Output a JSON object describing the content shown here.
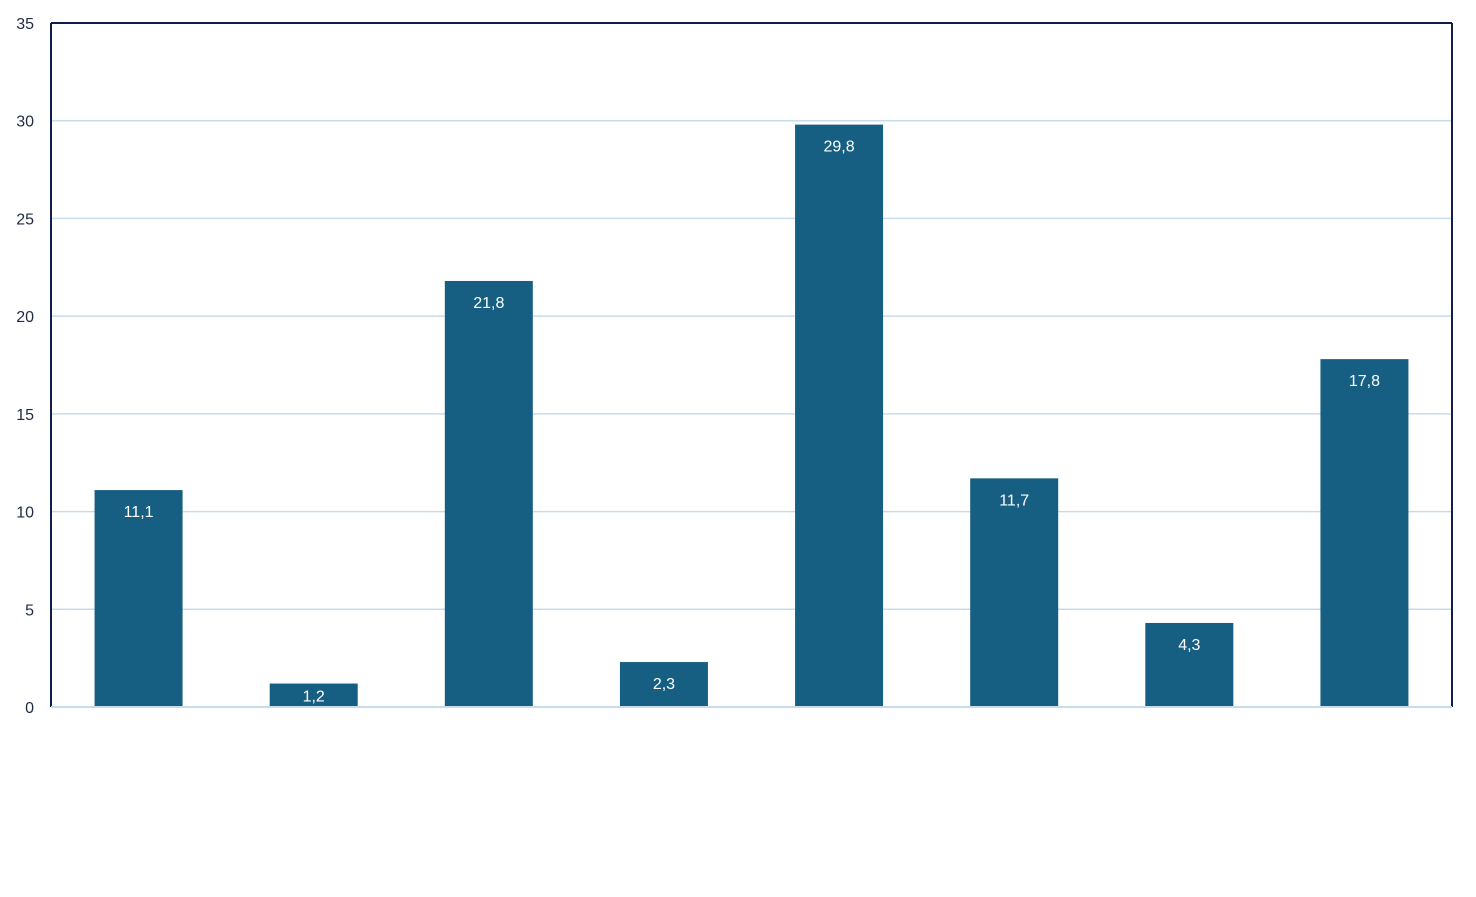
{
  "chart_data": {
    "type": "bar",
    "categories": [
      "",
      "",
      "",
      "",
      "",
      "",
      "",
      ""
    ],
    "values": [
      11.1,
      1.2,
      21.8,
      2.3,
      29.8,
      11.7,
      4.3,
      17.8
    ],
    "data_labels": [
      "11,1",
      "1,2",
      "21,8",
      "2,3",
      "29,8",
      "11,7",
      "4,3",
      "17,8"
    ],
    "ylim": [
      0,
      35
    ],
    "yticks": [
      0,
      5,
      10,
      15,
      20,
      25,
      30,
      35
    ],
    "ytick_labels": [
      "0",
      "5",
      "10",
      "15",
      "20",
      "25",
      "30",
      "35"
    ],
    "title": "",
    "xlabel": "",
    "ylabel": "",
    "grid": true,
    "legend": "none",
    "colors": {
      "bar": "#175f82",
      "grid": "#c7dcea",
      "axis": "#0f1f4b",
      "label_text": "#ffffff",
      "tick_text": "#1f2a44"
    }
  }
}
